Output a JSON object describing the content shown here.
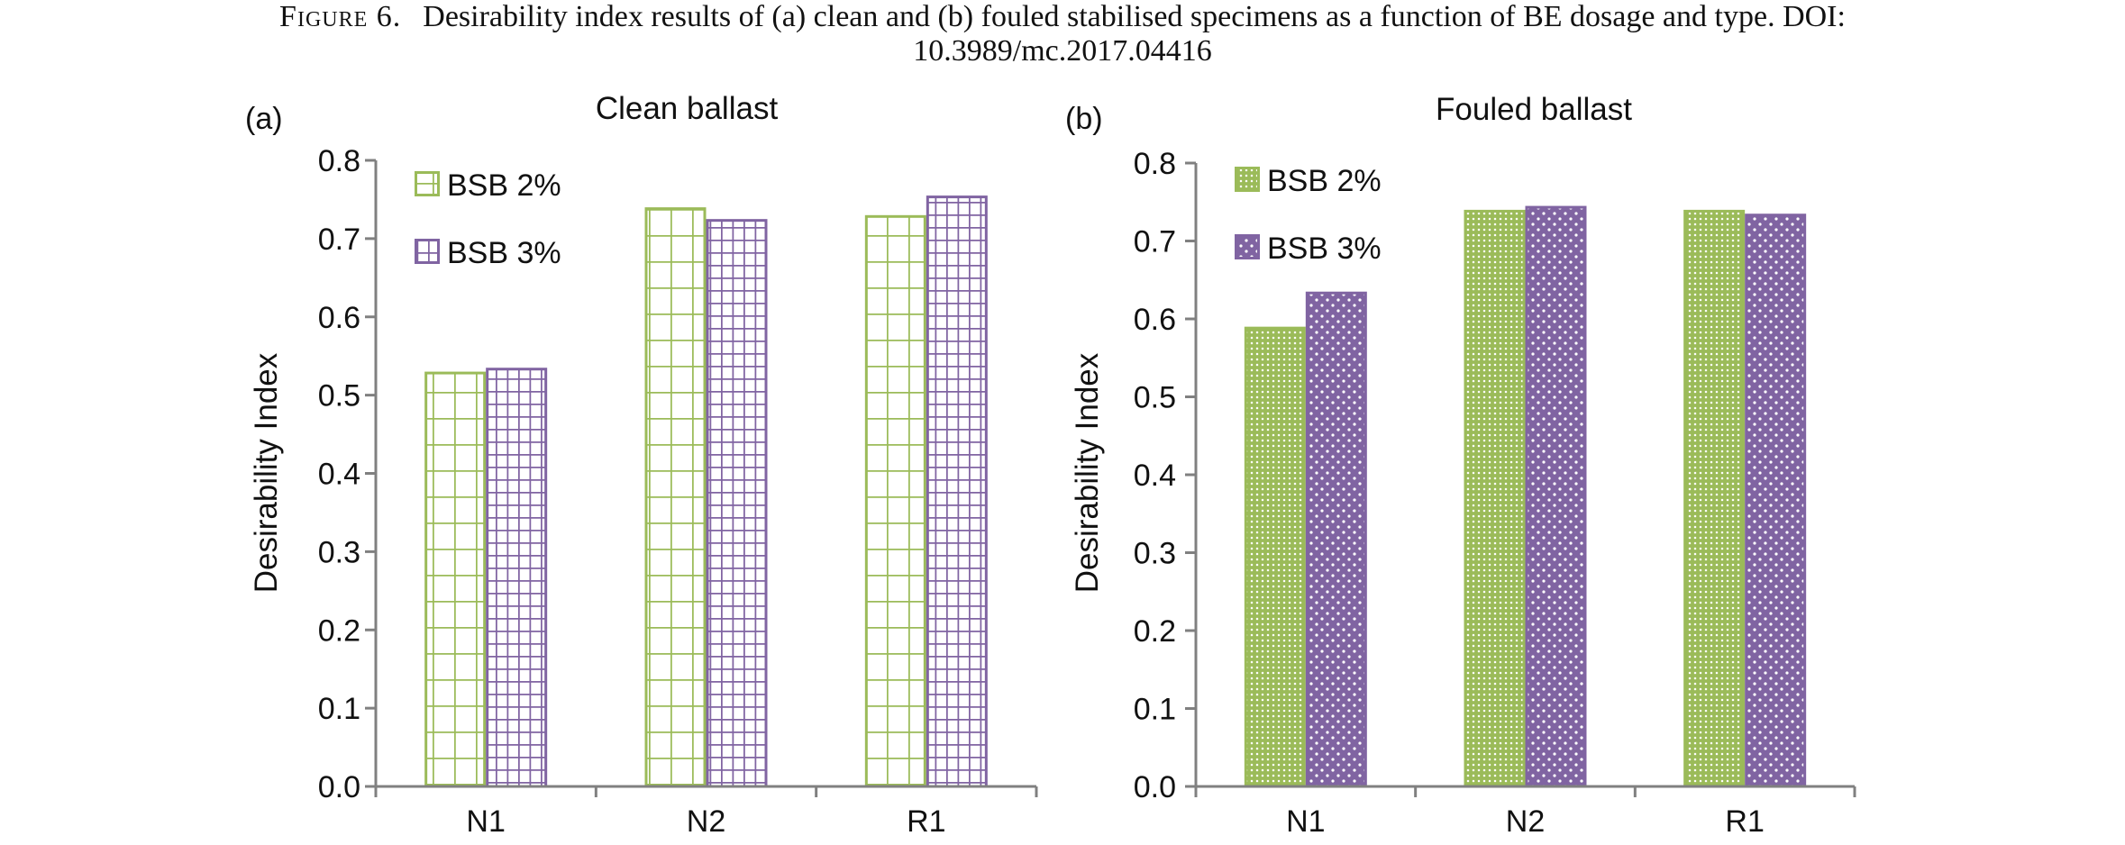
{
  "caption": {
    "figure_label": "Figure 6.",
    "line1": "Desirability index results of (a) clean and (b) fouled stabilised specimens as a function of BE dosage and type. DOI:",
    "line2": "10.3989/mc.2017.04416"
  },
  "colors": {
    "green": "#9bbb59",
    "purple": "#8064a2",
    "axis": "#808080"
  },
  "chart_data": [
    {
      "type": "bar",
      "panel_label": "(a)",
      "title": "Clean ballast",
      "ylabel": "Desirability Index",
      "xlabel": "",
      "categories": [
        "N1",
        "N2",
        "R1"
      ],
      "ylim": [
        0,
        0.8
      ],
      "yticks": [
        "0.0",
        "0.1",
        "0.2",
        "0.3",
        "0.4",
        "0.5",
        "0.6",
        "0.7",
        "0.8"
      ],
      "pattern": "grid",
      "legend_position": "top-left",
      "series": [
        {
          "name": "BSB 2%",
          "color": "#9bbb59",
          "values": [
            0.53,
            0.74,
            0.73
          ]
        },
        {
          "name": "BSB 3%",
          "color": "#8064a2",
          "values": [
            0.535,
            0.725,
            0.755
          ]
        }
      ]
    },
    {
      "type": "bar",
      "panel_label": "(b)",
      "title": "Fouled ballast",
      "ylabel": "Desirability Index",
      "xlabel": "",
      "categories": [
        "N1",
        "N2",
        "R1"
      ],
      "ylim": [
        0,
        0.8
      ],
      "yticks": [
        "0.0",
        "0.1",
        "0.2",
        "0.3",
        "0.4",
        "0.5",
        "0.6",
        "0.7",
        "0.8"
      ],
      "pattern": "dots",
      "legend_position": "top-left",
      "series": [
        {
          "name": "BSB 2%",
          "color": "#9bbb59",
          "values": [
            0.59,
            0.74,
            0.74
          ]
        },
        {
          "name": "BSB 3%",
          "color": "#8064a2",
          "values": [
            0.635,
            0.745,
            0.735
          ]
        }
      ]
    }
  ]
}
